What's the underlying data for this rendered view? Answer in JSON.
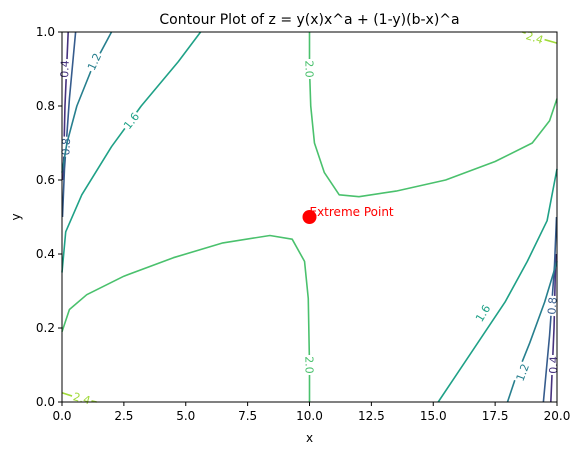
{
  "chart_data": {
    "type": "contour",
    "title": "Contour Plot of z = y(x)x^a + (1-y)(b-x)^a",
    "xlabel": "x",
    "ylabel": "y",
    "xlim": [
      0,
      20
    ],
    "ylim": [
      0,
      1
    ],
    "x_ticks": [
      "0.0",
      "2.5",
      "5.0",
      "7.5",
      "10.0",
      "12.5",
      "15.0",
      "17.5",
      "20.0"
    ],
    "y_ticks": [
      "0.0",
      "0.2",
      "0.4",
      "0.6",
      "0.8",
      "1.0"
    ],
    "grid": false,
    "contour_levels": [
      {
        "level_label": "0.4",
        "color": "#46327e",
        "lines": [
          {
            "points": [
              [
                0.25,
                1.0
              ],
              [
                0.12,
                0.8
              ],
              [
                0.05,
                0.6
              ]
            ],
            "label_at": [
              0.1,
              0.9
            ]
          },
          {
            "points": [
              [
                19.95,
                0.4
              ],
              [
                19.88,
                0.2
              ],
              [
                19.75,
                0.0
              ]
            ],
            "label_at": [
              19.85,
              0.1
            ]
          }
        ]
      },
      {
        "level_label": "0.8",
        "color": "#365c8d",
        "lines": [
          {
            "points": [
              [
                0.55,
                1.0
              ],
              [
                0.3,
                0.82
              ],
              [
                0.1,
                0.63
              ],
              [
                0.02,
                0.5
              ]
            ],
            "label_at": [
              0.15,
              0.69
            ]
          },
          {
            "points": [
              [
                19.98,
                0.5
              ],
              [
                19.9,
                0.37
              ],
              [
                19.7,
                0.18
              ],
              [
                19.45,
                0.0
              ]
            ],
            "label_at": [
              19.8,
              0.26
            ]
          }
        ]
      },
      {
        "level_label": "1.2",
        "color": "#277f8e",
        "lines": [
          {
            "points": [
              [
                2.0,
                1.0
              ],
              [
                1.2,
                0.9
              ],
              [
                0.6,
                0.8
              ],
              [
                0.2,
                0.7
              ],
              [
                0.0,
                0.62
              ]
            ],
            "label_at": [
              1.3,
              0.92
            ]
          },
          {
            "points": [
              [
                20.0,
                0.38
              ],
              [
                19.5,
                0.27
              ],
              [
                18.9,
                0.16
              ],
              [
                18.3,
                0.06
              ],
              [
                18.0,
                0.0
              ]
            ],
            "label_at": [
              18.6,
              0.08
            ]
          }
        ]
      },
      {
        "level_label": "1.6",
        "color": "#1fa187",
        "lines": [
          {
            "points": [
              [
                0.0,
                0.35
              ],
              [
                0.15,
                0.46
              ],
              [
                0.8,
                0.56
              ],
              [
                2.0,
                0.69
              ],
              [
                3.2,
                0.8
              ],
              [
                4.7,
                0.92
              ],
              [
                5.6,
                1.0
              ]
            ],
            "label_at": [
              2.8,
              0.76
            ]
          },
          {
            "points": [
              [
                20.0,
                0.63
              ],
              [
                19.6,
                0.49
              ],
              [
                18.8,
                0.38
              ],
              [
                17.9,
                0.27
              ],
              [
                16.8,
                0.16
              ],
              [
                15.8,
                0.06
              ],
              [
                15.2,
                0.0
              ]
            ],
            "label_at": [
              17.0,
              0.24
            ]
          }
        ]
      },
      {
        "level_label": "2.0",
        "color": "#4ac16d",
        "lines": [
          {
            "points": [
              [
                10.0,
                1.0
              ],
              [
                10.0,
                0.9
              ],
              [
                10.05,
                0.8
              ],
              [
                10.2,
                0.7
              ],
              [
                10.6,
                0.62
              ],
              [
                11.2,
                0.56
              ],
              [
                12.0,
                0.555
              ],
              [
                13.5,
                0.57
              ],
              [
                15.5,
                0.6
              ],
              [
                17.5,
                0.65
              ],
              [
                19.0,
                0.7
              ],
              [
                19.7,
                0.76
              ],
              [
                20.0,
                0.82
              ]
            ],
            "label_at": [
              10.0,
              0.9
            ]
          },
          {
            "points": [
              [
                0.0,
                0.19
              ],
              [
                0.3,
                0.25
              ],
              [
                1.0,
                0.29
              ],
              [
                2.5,
                0.34
              ],
              [
                4.5,
                0.39
              ],
              [
                6.5,
                0.43
              ],
              [
                8.4,
                0.45
              ],
              [
                9.3,
                0.44
              ],
              [
                9.8,
                0.38
              ],
              [
                9.95,
                0.28
              ],
              [
                10.0,
                0.1
              ],
              [
                10.0,
                0.0
              ]
            ],
            "label_at": [
              10.0,
              0.1
            ]
          }
        ]
      },
      {
        "level_label": "2.4",
        "color": "#a0da39",
        "lines": [
          {
            "points": [
              [
                18.6,
                1.0
              ],
              [
                19.2,
                0.985
              ],
              [
                20.0,
                0.97
              ]
            ],
            "label_at": [
              19.1,
              0.985
            ]
          },
          {
            "points": [
              [
                0.0,
                0.025
              ],
              [
                0.6,
                0.012
              ],
              [
                1.4,
                0.0
              ]
            ],
            "label_at": [
              0.8,
              0.01
            ]
          }
        ]
      }
    ],
    "annotations": [
      {
        "text": "Extreme Point",
        "x": 10.0,
        "y": 0.5,
        "color": "#ff0000",
        "marker": "circle"
      }
    ]
  }
}
